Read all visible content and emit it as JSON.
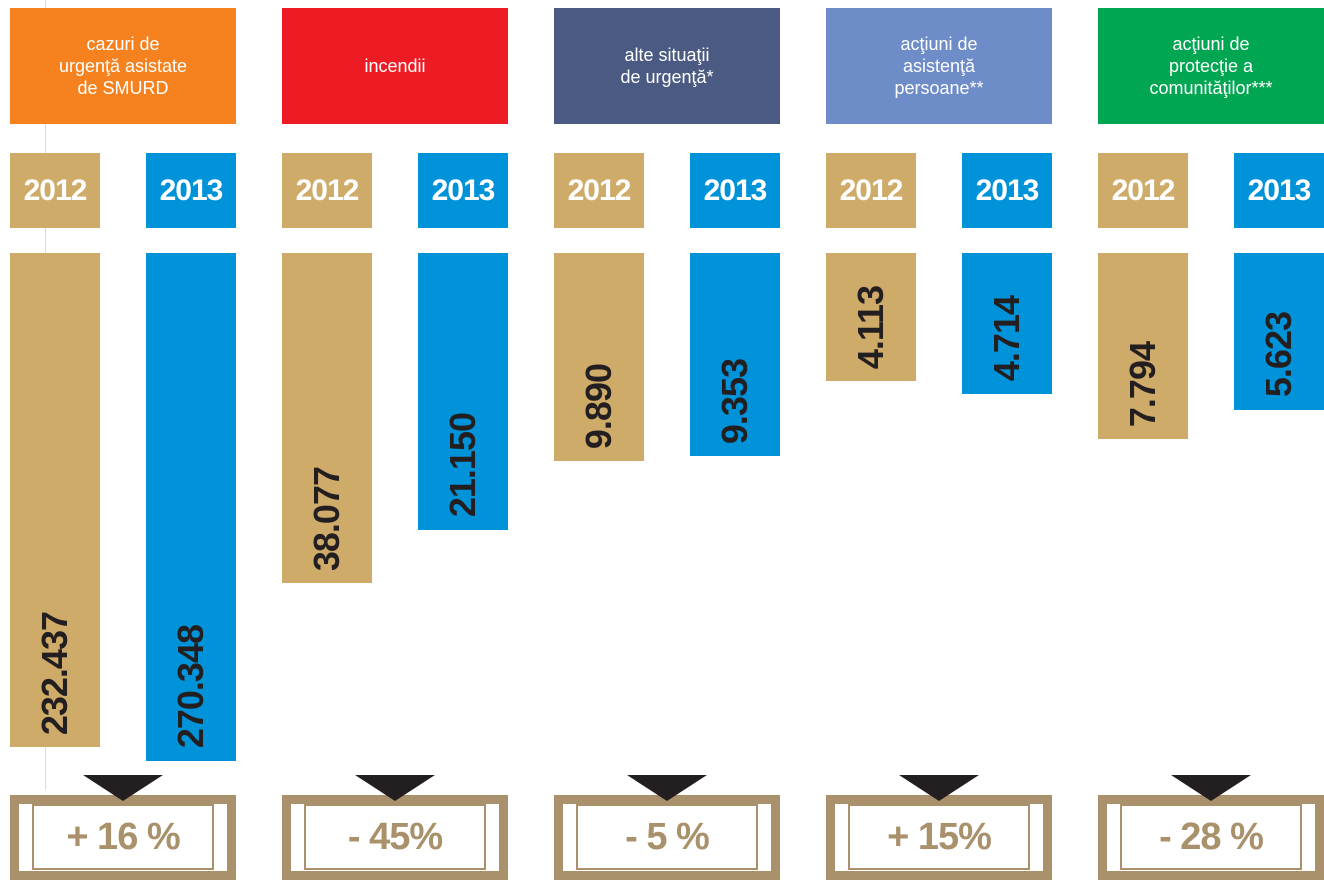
{
  "chart_data": {
    "type": "bar",
    "categories": [
      "cazuri de\nurgenţă asistate\nde SMURD",
      "incendii",
      "alte situaţii\nde urgenţă*",
      "acţiuni de\nasistenţă\npersoane**",
      "acţiuni de\nprotecţie a\ncomunităţilor***"
    ],
    "category_colors": [
      "#f5821f",
      "#ed1c24",
      "#4a5a82",
      "#6d8cc8",
      "#00a651"
    ],
    "series": [
      {
        "name": "2012",
        "color": "#cfab69",
        "values": [
          232437,
          38077,
          9890,
          4113,
          7794
        ],
        "value_labels": [
          "232.437",
          "38.077",
          "9.890",
          "4.113",
          "7.794"
        ]
      },
      {
        "name": "2013",
        "color": "#0093d9",
        "values": [
          270348,
          21150,
          9353,
          4714,
          5623
        ],
        "value_labels": [
          "270.348",
          "21.150",
          "9.353",
          "4.714",
          "5.623"
        ]
      }
    ],
    "log_scale": true,
    "ylim": [
      1000,
      300000
    ],
    "change_labels": [
      "+ 16 %",
      "- 45%",
      "- 5 %",
      "+ 15%",
      "- 28 %"
    ]
  }
}
